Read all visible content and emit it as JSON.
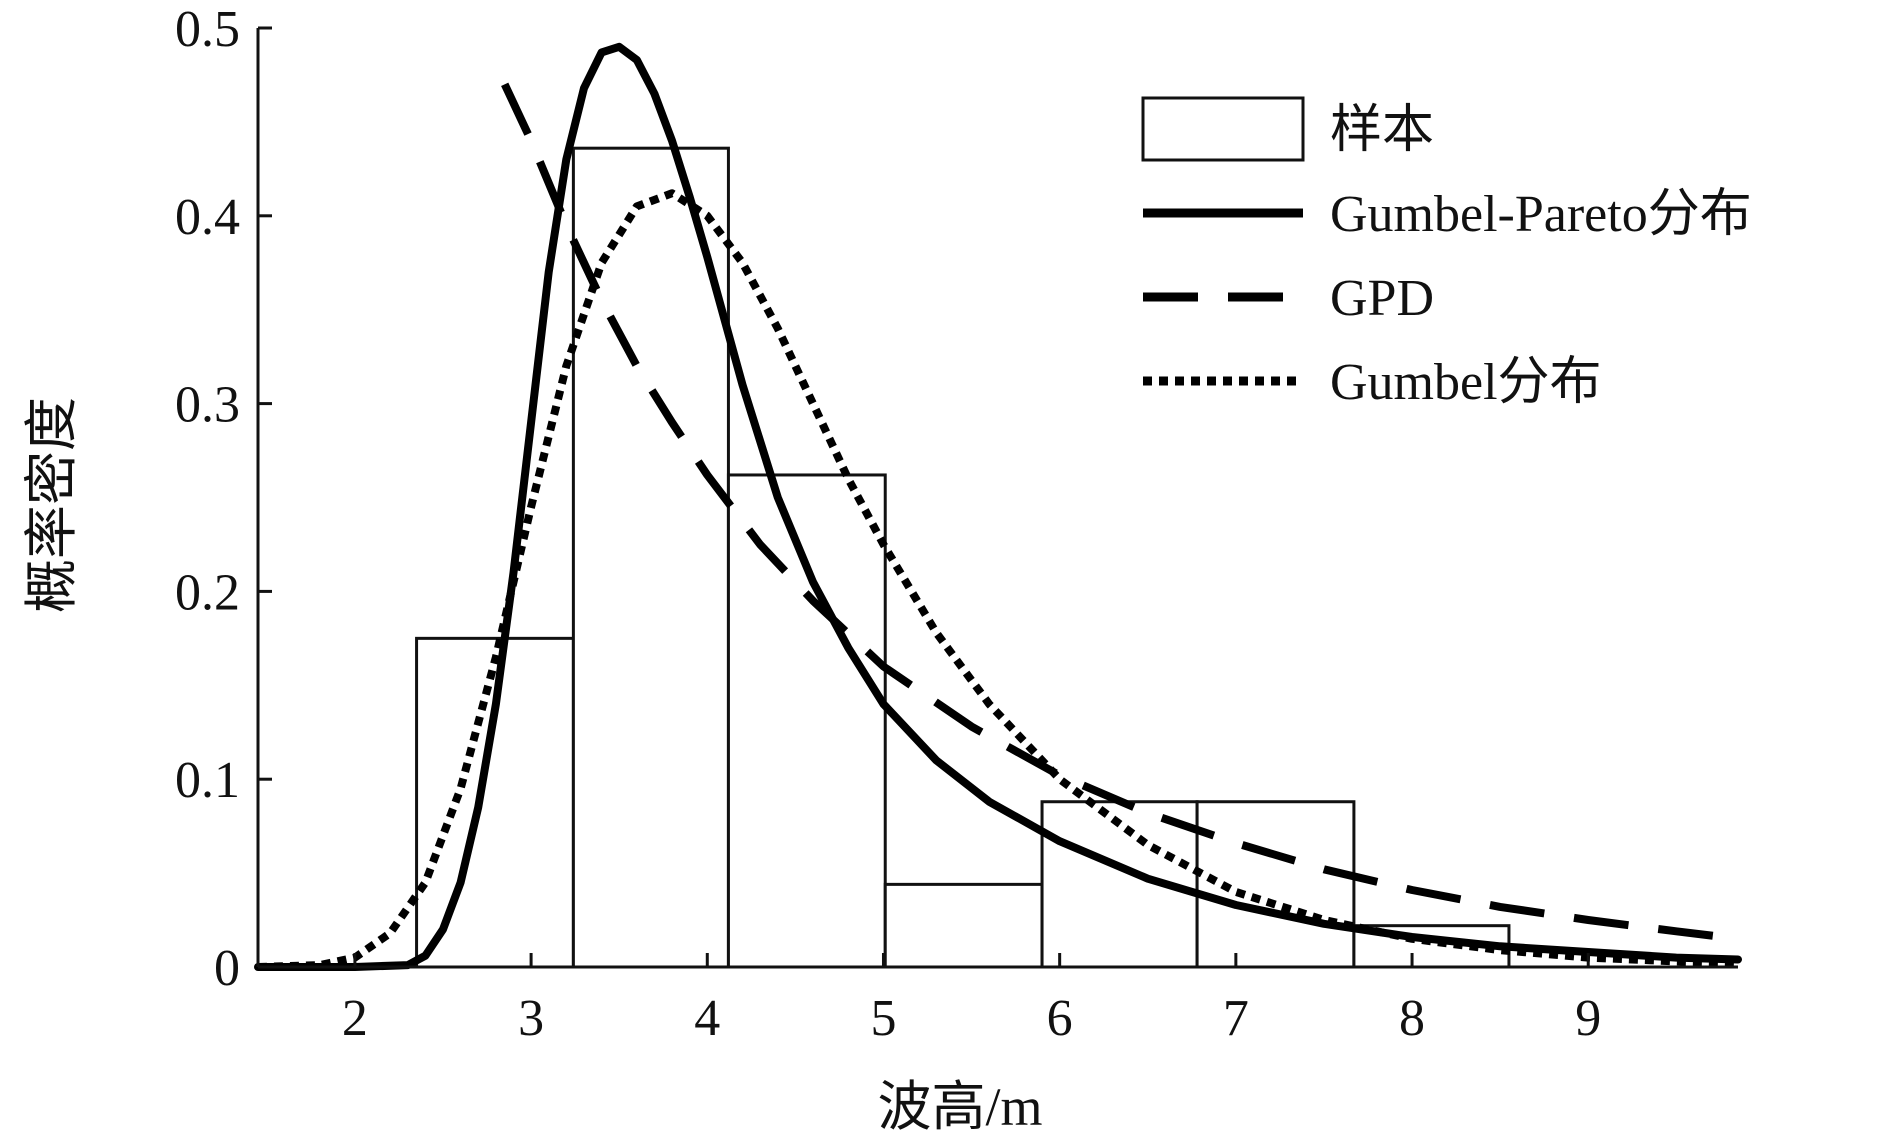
{
  "chart_data": {
    "type": "bar",
    "title": "",
    "xlabel": "波高/m",
    "ylabel": "概率密度",
    "xlim": [
      1.45,
      9.85
    ],
    "ylim": [
      0,
      0.5
    ],
    "xticks": [
      2,
      3,
      4,
      5,
      6,
      7,
      8,
      9
    ],
    "yticks": [
      0,
      0.1,
      0.2,
      0.3,
      0.4,
      0.5
    ],
    "xtick_labels": [
      "2",
      "3",
      "4",
      "5",
      "6",
      "7",
      "8",
      "9"
    ],
    "ytick_labels": [
      "0",
      "0.1",
      "0.2",
      "0.3",
      "0.4",
      "0.5"
    ],
    "grid": false,
    "legend_position": "top-right",
    "histogram": {
      "name": "样本",
      "bin_edges": [
        2.35,
        3.24,
        4.12,
        5.01,
        5.9,
        6.78,
        7.67,
        8.55
      ],
      "values": [
        0.175,
        0.436,
        0.262,
        0.044,
        0.088,
        0.088,
        0.022
      ]
    },
    "series": [
      {
        "name": "Gumbel-Pareto分布",
        "style": "solid",
        "x": [
          1.45,
          2.0,
          2.3,
          2.4,
          2.5,
          2.6,
          2.7,
          2.8,
          2.9,
          3.0,
          3.1,
          3.2,
          3.3,
          3.4,
          3.5,
          3.6,
          3.7,
          3.8,
          3.9,
          4.0,
          4.2,
          4.4,
          4.6,
          4.8,
          5.0,
          5.3,
          5.6,
          6.0,
          6.5,
          7.0,
          7.5,
          8.0,
          8.5,
          9.0,
          9.5,
          9.85
        ],
        "y": [
          0,
          0,
          0.001,
          0.006,
          0.02,
          0.045,
          0.085,
          0.14,
          0.21,
          0.29,
          0.37,
          0.43,
          0.468,
          0.487,
          0.49,
          0.483,
          0.465,
          0.44,
          0.41,
          0.378,
          0.31,
          0.25,
          0.205,
          0.17,
          0.14,
          0.11,
          0.088,
          0.067,
          0.047,
          0.033,
          0.023,
          0.016,
          0.011,
          0.008,
          0.005,
          0.004
        ]
      },
      {
        "name": "GPD",
        "style": "dashed",
        "x": [
          2.85,
          3.0,
          3.2,
          3.4,
          3.6,
          3.8,
          4.0,
          4.3,
          4.6,
          5.0,
          5.5,
          6.0,
          6.5,
          7.0,
          7.5,
          8.0,
          8.5,
          9.0,
          9.5,
          9.85
        ],
        "y": [
          0.47,
          0.44,
          0.395,
          0.355,
          0.32,
          0.29,
          0.262,
          0.225,
          0.195,
          0.16,
          0.128,
          0.102,
          0.082,
          0.066,
          0.052,
          0.041,
          0.032,
          0.025,
          0.019,
          0.015
        ]
      },
      {
        "name": "Gumbel分布",
        "style": "dotted",
        "x": [
          1.45,
          1.8,
          2.0,
          2.2,
          2.4,
          2.6,
          2.8,
          3.0,
          3.2,
          3.4,
          3.6,
          3.8,
          4.0,
          4.2,
          4.4,
          4.6,
          4.8,
          5.0,
          5.3,
          5.6,
          6.0,
          6.5,
          7.0,
          7.5,
          8.0,
          8.5,
          9.0,
          9.5,
          9.85
        ],
        "y": [
          0,
          0.001,
          0.005,
          0.018,
          0.045,
          0.095,
          0.165,
          0.245,
          0.32,
          0.375,
          0.405,
          0.412,
          0.4,
          0.375,
          0.34,
          0.3,
          0.26,
          0.225,
          0.178,
          0.14,
          0.1,
          0.065,
          0.04,
          0.025,
          0.015,
          0.009,
          0.005,
          0.003,
          0.002
        ]
      }
    ]
  }
}
